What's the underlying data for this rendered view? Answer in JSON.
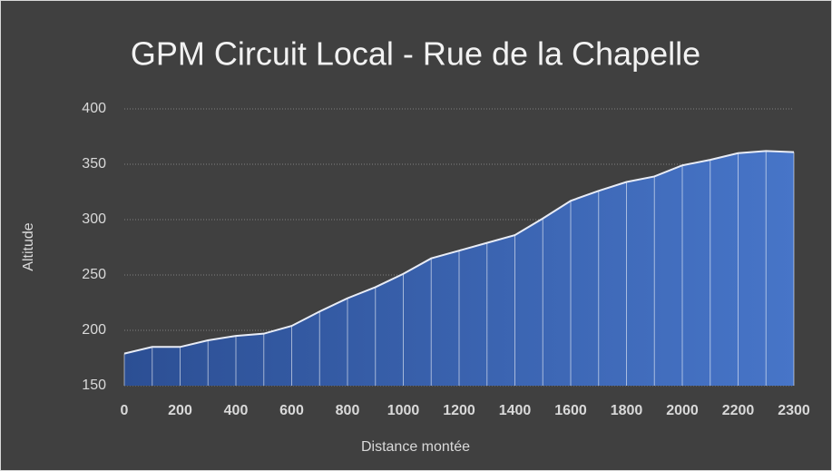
{
  "chart_data": {
    "type": "area",
    "title": "GPM Circuit Local - Rue de la Chapelle",
    "x_label": "Distance montée",
    "y_label": "Altitude",
    "categories": [
      0,
      null,
      200,
      null,
      400,
      null,
      600,
      null,
      800,
      null,
      1000,
      null,
      1200,
      null,
      1400,
      null,
      1600,
      null,
      1800,
      null,
      2000,
      null,
      2200,
      null,
      2300
    ],
    "values": [
      179,
      185,
      185,
      191,
      195,
      197,
      204,
      217,
      229,
      239,
      251,
      265,
      272,
      279,
      286,
      301,
      317,
      326,
      334,
      339,
      349,
      354,
      360,
      362,
      361
    ],
    "color": "#4472c4",
    "ylim": [
      150,
      400
    ],
    "yticks": [
      150,
      200,
      250,
      300,
      350,
      400
    ],
    "grid": true
  }
}
